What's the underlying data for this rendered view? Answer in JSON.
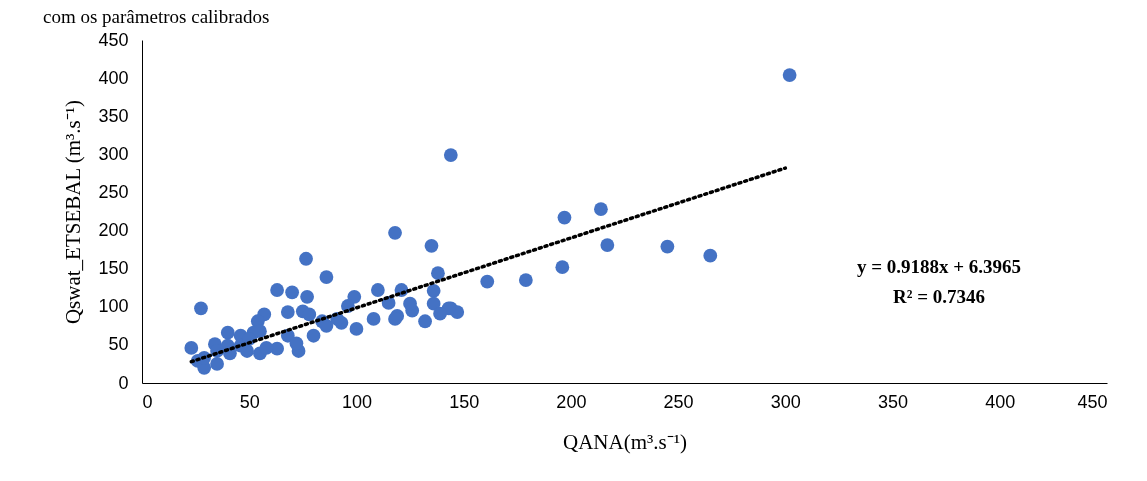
{
  "chart_data": {
    "type": "scatter",
    "title": "com os parâmetros calibrados",
    "xlabel": "QANA(m³.s⁻¹)",
    "ylabel": "Qswat_ETSEBAL (m³.s⁻¹)",
    "xlim": [
      0,
      450
    ],
    "xticks": [
      0,
      50,
      100,
      150,
      200,
      250,
      300,
      350,
      400,
      450
    ],
    "ylim": [
      0,
      450
    ],
    "yticks": [
      0,
      50,
      100,
      150,
      200,
      250,
      300,
      350,
      400,
      450
    ],
    "grid": false,
    "marker": "circle",
    "annotations": [
      "y = 0.9188x + 6.3965",
      "R² = 0.7346"
    ],
    "series": [
      {
        "color": "#4472c4",
        "x": [
          302,
          144,
          214,
          197,
          217,
          245,
          265,
          196,
          179,
          161,
          118,
          76.5,
          135,
          86,
          138,
          110,
          121,
          136,
          63,
          70,
          77,
          99,
          27.5,
          68,
          75,
          78,
          40,
          57,
          54,
          52,
          46,
          34,
          23,
          26,
          29,
          35,
          41,
          49,
          55,
          63,
          73,
          80,
          84,
          93,
          100,
          96,
          91,
          108,
          115,
          119,
          126,
          132,
          136,
          144,
          147,
          58,
          46,
          40,
          50,
          55,
          35,
          29,
          68,
          72,
          86,
          125,
          118,
          143,
          139
        ],
        "values": [
          404,
          299,
          228,
          217,
          181,
          179,
          167,
          152,
          135,
          133,
          197,
          163,
          180,
          139,
          144,
          122,
          122,
          121,
          122,
          119,
          113,
          113,
          98,
          93,
          94,
          90,
          66,
          90,
          81,
          66,
          62,
          51,
          46,
          29,
          20,
          25,
          39,
          42,
          39,
          45,
          42,
          62,
          81,
          79,
          71,
          101,
          84,
          84,
          105,
          88,
          95,
          81,
          104,
          98,
          93,
          46,
          49,
          49,
          58,
          68,
          42,
          33,
          62,
          52,
          75,
          104,
          84,
          98,
          91
        ]
      },
      {
        "type": "line",
        "color": "#000000",
        "line_style": "dotted",
        "marker": "none",
        "x": [
          23,
          300
        ],
        "values": [
          28,
          282
        ]
      }
    ]
  }
}
